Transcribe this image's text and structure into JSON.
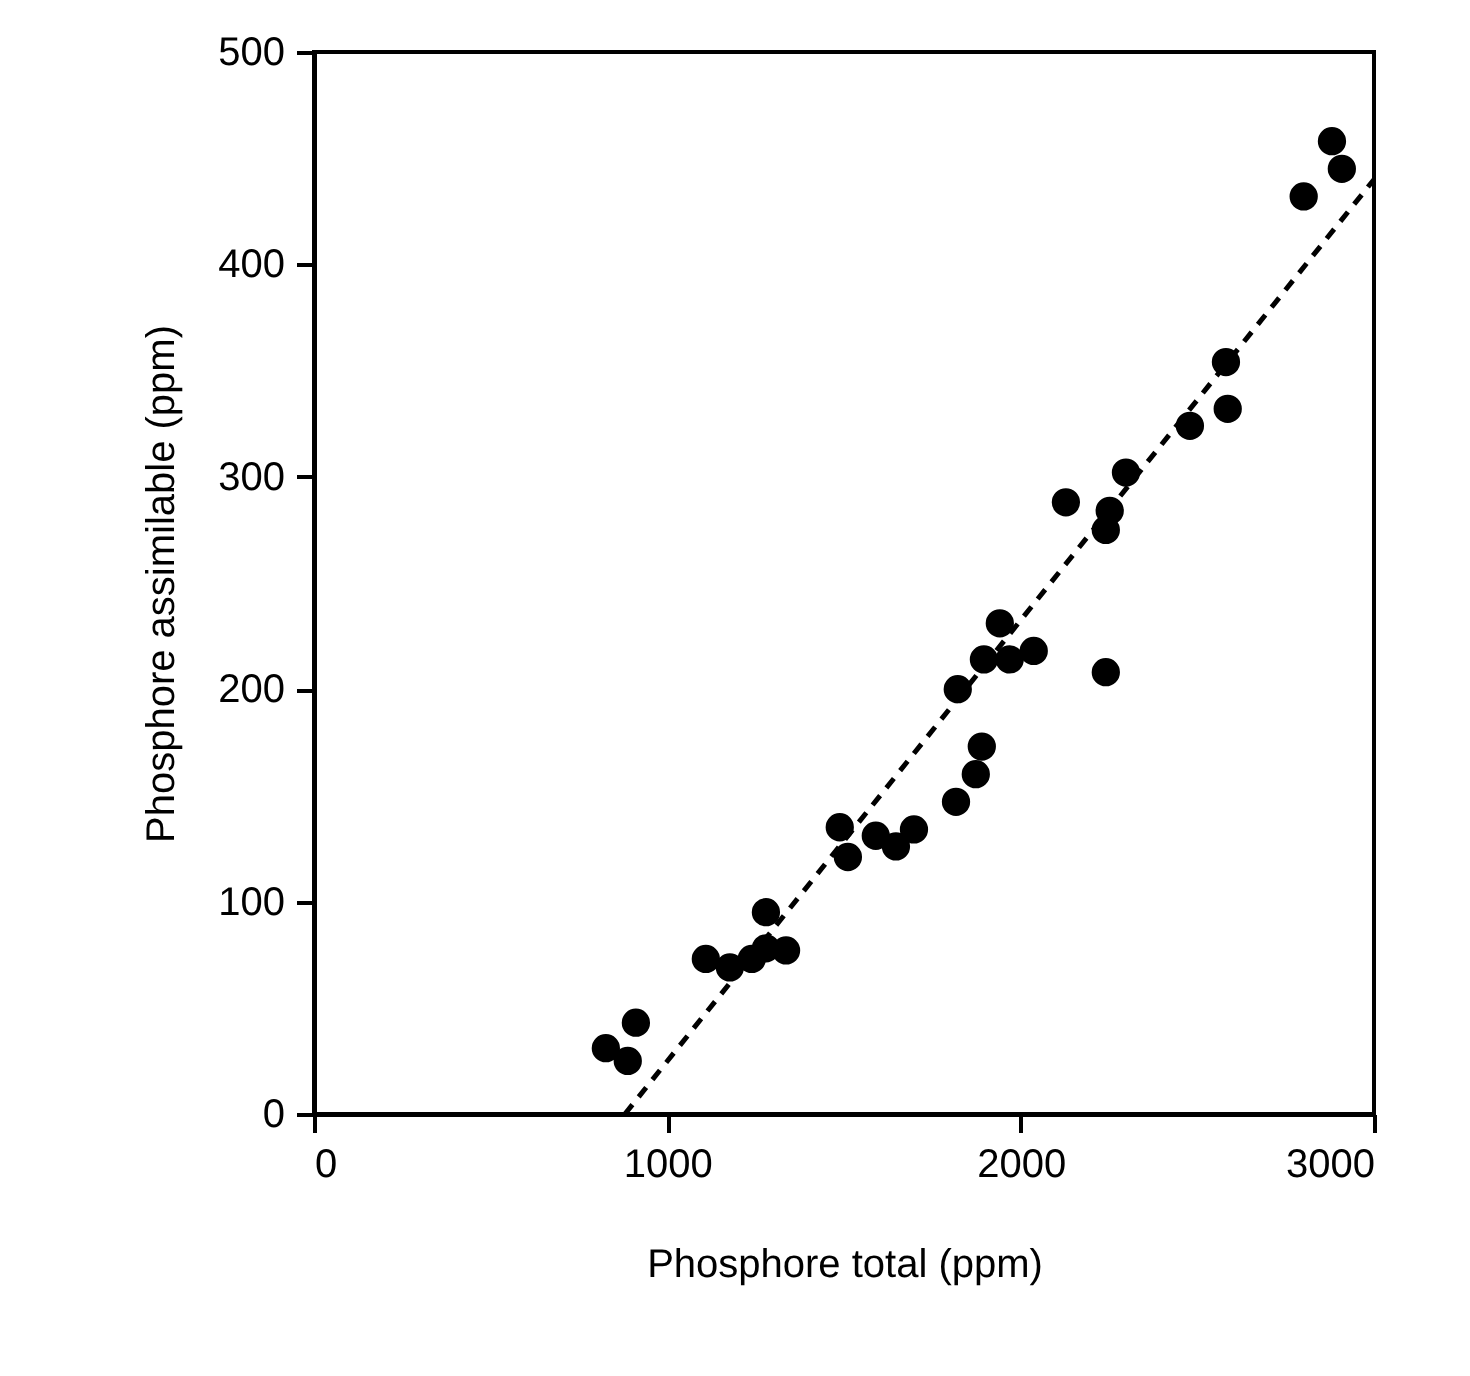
{
  "chart_data": {
    "type": "scatter",
    "xlabel": "Phosphore total (ppm)",
    "ylabel": "Phosphore assimilable (ppm)",
    "xlim": [
      0,
      3000
    ],
    "xticks": [
      0,
      1000,
      2000,
      3000
    ],
    "ylim": [
      0,
      500
    ],
    "yticks": [
      0,
      100,
      200,
      300,
      400,
      500
    ],
    "grid": false,
    "marker": "circle",
    "series": [
      {
        "color": "#000000",
        "x": [
          826,
          888,
          911,
          1109,
          1177,
          1239,
          1279,
          1279,
          1336,
          1488,
          1511,
          1590,
          1647,
          1698,
          1817,
          1873,
          1890,
          1822,
          1896,
          1941,
          1969,
          2037,
          2128,
          2241,
          2241,
          2252,
          2298,
          2479,
          2581,
          2586,
          2801,
          2881,
          2909
        ],
        "values": [
          31,
          25,
          43,
          73,
          69,
          73,
          78,
          95,
          77,
          135,
          121,
          131,
          126,
          134,
          147,
          160,
          173,
          200,
          214,
          231,
          214,
          218,
          288,
          208,
          275,
          284,
          302,
          324,
          354,
          332,
          432,
          458,
          445
        ]
      },
      {
        "type": "line",
        "color": "#000000",
        "line_style": "dashed",
        "marker": "none",
        "x": [
          880,
          3000
        ],
        "values": [
          0,
          440
        ]
      }
    ]
  }
}
